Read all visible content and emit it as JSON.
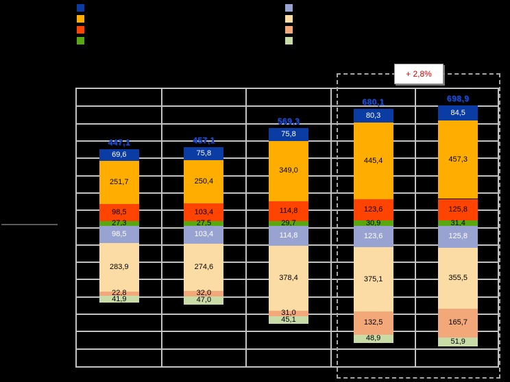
{
  "legend": {
    "group1": [
      {
        "name": "dark-blue",
        "color": "#0A3CA4"
      },
      {
        "name": "amber",
        "color": "#FFAE00"
      },
      {
        "name": "orange-red",
        "color": "#FF4300"
      },
      {
        "name": "green",
        "color": "#5AA80F"
      }
    ],
    "group2": [
      {
        "name": "periwinkle",
        "color": "#99A3D2"
      },
      {
        "name": "peach",
        "color": "#FBDCA4"
      },
      {
        "name": "salmon",
        "color": "#F2A878"
      },
      {
        "name": "light-green",
        "color": "#C9DCA8"
      }
    ]
  },
  "annotation": {
    "growth_label": "+ 2,8%"
  },
  "chart_data": {
    "type": "bar",
    "subtype": "diverging-stacked-bar",
    "bar_count": 5,
    "decimal_separator": ",",
    "totals": [
      447.1,
      457.1,
      569.3,
      680.1,
      698.9
    ],
    "up_series": [
      {
        "name": "dark-blue",
        "color": "#0A3CA4",
        "label_color": "#FFFFFF",
        "values": [
          69.6,
          75.8,
          75.8,
          80.3,
          84.5
        ]
      },
      {
        "name": "amber",
        "color": "#FFAE00",
        "label_color": "#000000",
        "values": [
          251.7,
          250.4,
          349.0,
          445.4,
          457.3
        ]
      },
      {
        "name": "orange-red",
        "color": "#FF4300",
        "label_color": "#000000",
        "values": [
          98.5,
          103.4,
          114.8,
          123.6,
          125.8
        ]
      },
      {
        "name": "green",
        "color": "#5AA80F",
        "label_color": "#000000",
        "values": [
          27.3,
          27.5,
          29.7,
          30.9,
          31.4
        ]
      }
    ],
    "down_series": [
      {
        "name": "periwinkle",
        "color": "#99A3D2",
        "label_color": "#FFFFFF",
        "values": [
          98.5,
          103.4,
          114.8,
          123.6,
          125.8
        ]
      },
      {
        "name": "peach",
        "color": "#FBDCA4",
        "label_color": "#000000",
        "values": [
          283.9,
          274.6,
          378.4,
          375.1,
          355.5
        ]
      },
      {
        "name": "salmon",
        "color": "#F2A878",
        "label_color": "#000000",
        "values": [
          22.8,
          32.0,
          31.0,
          132.5,
          165.7
        ]
      },
      {
        "name": "light-green",
        "color": "#C9DCA8",
        "label_color": "#000000",
        "values": [
          41.9,
          47.0,
          45.1,
          48.9,
          51.9
        ]
      }
    ],
    "highlighted_bars": [
      4,
      5
    ],
    "legend_position": "top",
    "grid": true
  }
}
